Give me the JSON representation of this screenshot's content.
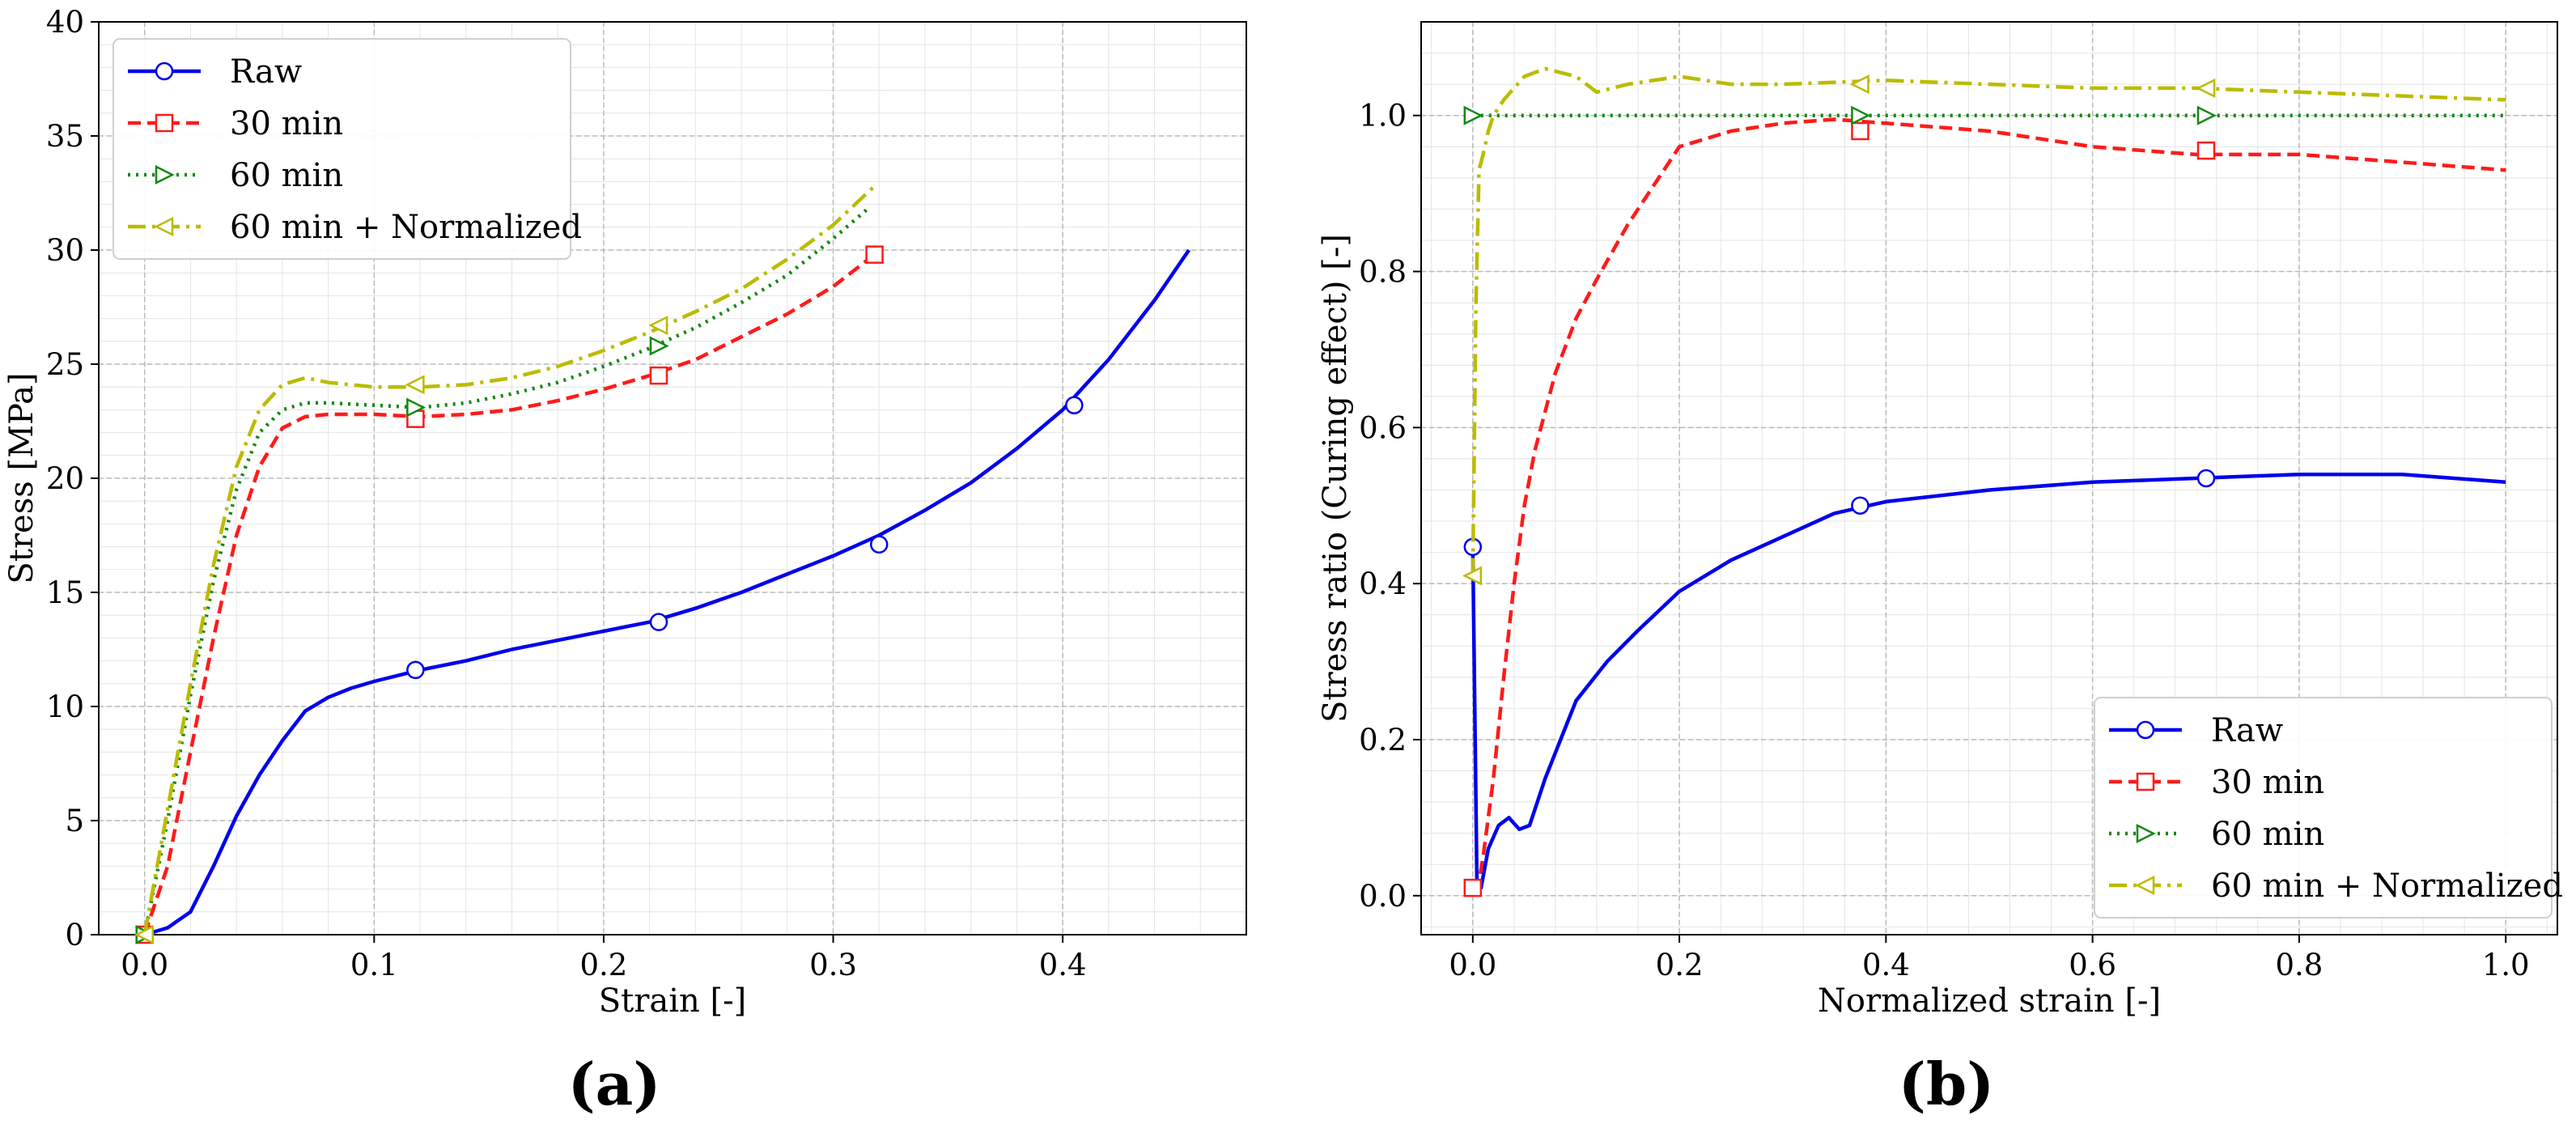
{
  "chart_data": [
    {
      "type": "line",
      "panel_label": "(a)",
      "xlabel": "Strain [-]",
      "ylabel": "Stress [MPa]",
      "xlim": [
        -0.02,
        0.48
      ],
      "ylim": [
        0,
        40
      ],
      "xticks": [
        0.0,
        0.1,
        0.2,
        0.3,
        0.4
      ],
      "xtick_labels": [
        "0.0",
        "0.1",
        "0.2",
        "0.3",
        "0.4"
      ],
      "yticks": [
        0,
        5,
        10,
        15,
        20,
        25,
        30,
        35,
        40
      ],
      "ytick_labels": [
        "0",
        "5",
        "10",
        "15",
        "20",
        "25",
        "30",
        "35",
        "40"
      ],
      "grid": true,
      "legend_position": "top-left",
      "series": [
        {
          "name": "Raw",
          "color": "#0000ee",
          "marker": "circle",
          "style": "solid",
          "x": [
            0.0,
            0.01,
            0.02,
            0.03,
            0.04,
            0.05,
            0.06,
            0.07,
            0.08,
            0.09,
            0.1,
            0.12,
            0.14,
            0.16,
            0.18,
            0.2,
            0.22,
            0.24,
            0.26,
            0.28,
            0.3,
            0.32,
            0.34,
            0.36,
            0.38,
            0.4,
            0.42,
            0.44,
            0.455
          ],
          "y": [
            0.0,
            0.3,
            1.0,
            3.0,
            5.2,
            7.0,
            8.5,
            9.8,
            10.4,
            10.8,
            11.1,
            11.6,
            12.0,
            12.5,
            12.9,
            13.3,
            13.7,
            14.3,
            15.0,
            15.8,
            16.6,
            17.5,
            18.6,
            19.8,
            21.3,
            23.0,
            25.2,
            27.8,
            30.0
          ],
          "marker_x": [
            0.118,
            0.224,
            0.32,
            0.405
          ],
          "marker_y": [
            11.6,
            13.7,
            17.1,
            23.2
          ]
        },
        {
          "name": "30 min",
          "color": "#ff1a1a",
          "marker": "square",
          "style": "dashed",
          "x": [
            0.0,
            0.01,
            0.02,
            0.03,
            0.04,
            0.05,
            0.06,
            0.07,
            0.08,
            0.1,
            0.12,
            0.14,
            0.16,
            0.18,
            0.2,
            0.22,
            0.24,
            0.26,
            0.28,
            0.3,
            0.318
          ],
          "y": [
            0.0,
            3.0,
            8.0,
            13.0,
            17.5,
            20.5,
            22.2,
            22.7,
            22.8,
            22.8,
            22.7,
            22.8,
            23.0,
            23.4,
            23.9,
            24.5,
            25.2,
            26.2,
            27.2,
            28.4,
            29.8
          ],
          "marker_x": [
            0.0,
            0.118,
            0.224,
            0.318
          ],
          "marker_y": [
            0.0,
            22.6,
            24.5,
            29.8
          ]
        },
        {
          "name": "60 min",
          "color": "#118811",
          "marker": "triangle-right",
          "style": "dotted",
          "x": [
            0.0,
            0.01,
            0.02,
            0.03,
            0.04,
            0.05,
            0.06,
            0.07,
            0.08,
            0.1,
            0.12,
            0.14,
            0.16,
            0.18,
            0.2,
            0.22,
            0.24,
            0.26,
            0.28,
            0.3,
            0.315
          ],
          "y": [
            0.0,
            5.0,
            10.5,
            15.5,
            19.5,
            22.0,
            23.0,
            23.3,
            23.3,
            23.2,
            23.1,
            23.3,
            23.7,
            24.2,
            24.9,
            25.7,
            26.6,
            27.7,
            28.9,
            30.5,
            31.8
          ],
          "marker_x": [
            0.0,
            0.118,
            0.224
          ],
          "marker_y": [
            0.0,
            23.1,
            25.8
          ]
        },
        {
          "name": "60 min + Normalized",
          "color": "#bbbb00",
          "marker": "triangle-left",
          "style": "dashdot",
          "x": [
            0.0,
            0.01,
            0.02,
            0.03,
            0.04,
            0.05,
            0.06,
            0.07,
            0.08,
            0.1,
            0.12,
            0.14,
            0.16,
            0.18,
            0.2,
            0.22,
            0.24,
            0.26,
            0.28,
            0.3,
            0.318
          ],
          "y": [
            0.0,
            5.5,
            11.0,
            16.2,
            20.5,
            23.0,
            24.1,
            24.4,
            24.2,
            24.0,
            24.0,
            24.1,
            24.4,
            24.9,
            25.6,
            26.4,
            27.3,
            28.3,
            29.6,
            31.1,
            32.8
          ],
          "marker_x": [
            0.0,
            0.118,
            0.224
          ],
          "marker_y": [
            0.0,
            24.1,
            26.7
          ]
        }
      ]
    },
    {
      "type": "line",
      "panel_label": "(b)",
      "xlabel": "Normalized strain [-]",
      "ylabel": "Stress ratio (Curing effect) [-]",
      "xlim": [
        -0.05,
        1.05
      ],
      "ylim": [
        -0.05,
        1.12
      ],
      "xticks": [
        0.0,
        0.2,
        0.4,
        0.6,
        0.8,
        1.0
      ],
      "xtick_labels": [
        "0.0",
        "0.2",
        "0.4",
        "0.6",
        "0.8",
        "1.0"
      ],
      "yticks": [
        0.0,
        0.2,
        0.4,
        0.6,
        0.8,
        1.0
      ],
      "ytick_labels": [
        "0.0",
        "0.2",
        "0.4",
        "0.6",
        "0.8",
        "1.0"
      ],
      "grid": true,
      "legend_position": "bottom-right",
      "series": [
        {
          "name": "Raw",
          "color": "#0000ee",
          "marker": "circle",
          "style": "solid",
          "x": [
            0.0,
            0.004,
            0.008,
            0.015,
            0.025,
            0.035,
            0.045,
            0.055,
            0.07,
            0.085,
            0.1,
            0.13,
            0.16,
            0.2,
            0.25,
            0.3,
            0.35,
            0.4,
            0.5,
            0.6,
            0.7,
            0.8,
            0.9,
            1.0
          ],
          "y": [
            0.45,
            0.02,
            0.01,
            0.06,
            0.09,
            0.1,
            0.085,
            0.09,
            0.15,
            0.2,
            0.25,
            0.3,
            0.34,
            0.39,
            0.43,
            0.46,
            0.49,
            0.505,
            0.52,
            0.53,
            0.535,
            0.54,
            0.54,
            0.53
          ],
          "marker_x": [
            0.0,
            0.375,
            0.71
          ],
          "marker_y": [
            0.447,
            0.5,
            0.535
          ]
        },
        {
          "name": "30 min",
          "color": "#ff1a1a",
          "marker": "square",
          "style": "dashed",
          "x": [
            0.0,
            0.005,
            0.01,
            0.02,
            0.03,
            0.04,
            0.05,
            0.06,
            0.08,
            0.1,
            0.12,
            0.15,
            0.18,
            0.2,
            0.25,
            0.3,
            0.35,
            0.4,
            0.5,
            0.6,
            0.7,
            0.8,
            0.9,
            1.0
          ],
          "y": [
            0.01,
            0.01,
            0.05,
            0.15,
            0.28,
            0.4,
            0.5,
            0.57,
            0.67,
            0.74,
            0.79,
            0.86,
            0.92,
            0.96,
            0.98,
            0.99,
            0.995,
            0.99,
            0.98,
            0.96,
            0.95,
            0.95,
            0.94,
            0.93
          ],
          "marker_x": [
            0.0,
            0.375,
            0.71
          ],
          "marker_y": [
            0.01,
            0.98,
            0.955
          ]
        },
        {
          "name": "60 min",
          "color": "#118811",
          "marker": "triangle-right",
          "style": "dotted",
          "x": [
            0.0,
            1.0
          ],
          "y": [
            1.0,
            1.0
          ],
          "marker_x": [
            0.0,
            0.375,
            0.71
          ],
          "marker_y": [
            1.0,
            1.0,
            1.0
          ]
        },
        {
          "name": "60 min + Normalized",
          "color": "#bbbb00",
          "marker": "triangle-left",
          "style": "dashdot",
          "x": [
            0.0,
            0.003,
            0.006,
            0.01,
            0.015,
            0.02,
            0.03,
            0.05,
            0.07,
            0.1,
            0.12,
            0.15,
            0.2,
            0.25,
            0.3,
            0.4,
            0.5,
            0.6,
            0.7,
            0.8,
            0.9,
            1.0
          ],
          "y": [
            0.41,
            0.75,
            0.93,
            0.95,
            0.98,
            1.0,
            1.02,
            1.05,
            1.06,
            1.05,
            1.03,
            1.04,
            1.05,
            1.04,
            1.04,
            1.045,
            1.04,
            1.035,
            1.035,
            1.03,
            1.025,
            1.02
          ],
          "marker_x": [
            0.0,
            0.375,
            0.71
          ],
          "marker_y": [
            0.41,
            1.04,
            1.035
          ]
        }
      ]
    }
  ]
}
